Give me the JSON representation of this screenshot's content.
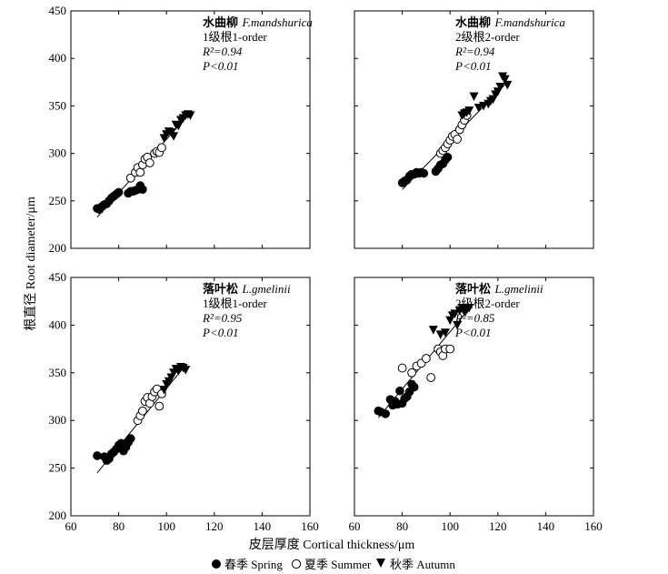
{
  "chart_data": {
    "type": "scatter",
    "xlabel": "皮层厚度 Cortical thickness/μm",
    "ylabel": "根直径  Root diameter/μm",
    "xlim": [
      60,
      160
    ],
    "xticks": [
      "60",
      "80",
      "100",
      "120",
      "140",
      "160"
    ],
    "ylim": [
      200,
      450
    ],
    "yticks": [
      "200",
      "250",
      "300",
      "350",
      "400",
      "450"
    ],
    "legend": {
      "placement": "bottom-center",
      "entries": [
        {
          "label": "春季 Spring",
          "marker": "filled-circle"
        },
        {
          "label": "夏季 Summer",
          "marker": "open-circle"
        },
        {
          "label": "秋季 Autumn",
          "marker": "filled-triangle-down"
        }
      ]
    },
    "panels": [
      {
        "species_cn": "水曲柳",
        "species_latin": "F.mandshurica",
        "order": "1级根1-order",
        "r2": "R²=0.94",
        "p": "P<0.01",
        "fit_line": [
          [
            71,
            233
          ],
          [
            110,
            343
          ]
        ],
        "series": [
          {
            "name": "春季 Spring",
            "points": [
              [
                71,
                242
              ],
              [
                72,
                241
              ],
              [
                73,
                244
              ],
              [
                74,
                246
              ],
              [
                75,
                247
              ],
              [
                76,
                250
              ],
              [
                77,
                253
              ],
              [
                78,
                255
              ],
              [
                79,
                257
              ],
              [
                80,
                259
              ],
              [
                84,
                258
              ],
              [
                85,
                260
              ],
              [
                86,
                260
              ],
              [
                87,
                261
              ],
              [
                88,
                262
              ],
              [
                89,
                266
              ],
              [
                90,
                262
              ]
            ]
          },
          {
            "name": "夏季 Summer",
            "points": [
              [
                85,
                274
              ],
              [
                87,
                280
              ],
              [
                88,
                285
              ],
              [
                89,
                280
              ],
              [
                90,
                288
              ],
              [
                91,
                294
              ],
              [
                92,
                296
              ],
              [
                93,
                290
              ],
              [
                95,
                300
              ],
              [
                96,
                302
              ],
              [
                97,
                301
              ],
              [
                98,
                306
              ]
            ]
          },
          {
            "name": "秋季 Autumn",
            "points": [
              [
                99,
                316
              ],
              [
                100,
                320
              ],
              [
                101,
                323
              ],
              [
                102,
                322
              ],
              [
                103,
                318
              ],
              [
                104,
                330
              ],
              [
                105,
                329
              ],
              [
                106,
                335
              ],
              [
                107,
                337
              ],
              [
                108,
                340
              ],
              [
                109,
                341
              ],
              [
                110,
                340
              ]
            ]
          }
        ]
      },
      {
        "species_cn": "水曲柳",
        "species_latin": "F.mandshurica",
        "order": "2级根2-order",
        "r2": "R²=0.94",
        "p": "P<0.01",
        "fit_line": [
          [
            80,
            262
          ],
          [
            124,
            375
          ]
        ],
        "series": [
          {
            "name": "春季 Spring",
            "points": [
              [
                80,
                269
              ],
              [
                81,
                271
              ],
              [
                82,
                272
              ],
              [
                83,
                276
              ],
              [
                84,
                278
              ],
              [
                85,
                278
              ],
              [
                86,
                280
              ],
              [
                87,
                279
              ],
              [
                88,
                280
              ],
              [
                89,
                279
              ],
              [
                94,
                281
              ],
              [
                95,
                284
              ],
              [
                96,
                288
              ],
              [
                97,
                289
              ],
              [
                98,
                293
              ],
              [
                99,
                296
              ]
            ]
          },
          {
            "name": "夏季 Summer",
            "points": [
              [
                96,
                300
              ],
              [
                97,
                303
              ],
              [
                98,
                306
              ],
              [
                99,
                310
              ],
              [
                100,
                314
              ],
              [
                101,
                318
              ],
              [
                102,
                320
              ],
              [
                103,
                315
              ],
              [
                104,
                325
              ],
              [
                105,
                330
              ],
              [
                106,
                335
              ],
              [
                107,
                340
              ]
            ]
          },
          {
            "name": "秋季 Autumn",
            "points": [
              [
                105,
                340
              ],
              [
                106,
                342
              ],
              [
                107,
                343
              ],
              [
                108,
                345
              ],
              [
                110,
                360
              ],
              [
                112,
                348
              ],
              [
                114,
                350
              ],
              [
                116,
                352
              ],
              [
                117,
                355
              ],
              [
                118,
                357
              ],
              [
                119,
                362
              ],
              [
                120,
                365
              ],
              [
                121,
                370
              ],
              [
                122,
                381
              ],
              [
                123,
                378
              ],
              [
                124,
                372
              ]
            ]
          }
        ]
      },
      {
        "species_cn": "落叶松",
        "species_latin": "L.gmelinii",
        "order": "1级根1-order",
        "r2": "R²=0.95",
        "p": "P<0.01",
        "fit_line": [
          [
            71,
            245
          ],
          [
            108,
            358
          ]
        ],
        "series": [
          {
            "name": "春季 Spring",
            "points": [
              [
                71,
                263
              ],
              [
                74,
                262
              ],
              [
                75,
                258
              ],
              [
                76,
                260
              ],
              [
                77,
                265
              ],
              [
                78,
                267
              ],
              [
                79,
                270
              ],
              [
                80,
                274
              ],
              [
                81,
                276
              ],
              [
                82,
                268
              ],
              [
                83,
                272
              ],
              [
                84,
                277
              ],
              [
                85,
                281
              ]
            ]
          },
          {
            "name": "夏季 Summer",
            "points": [
              [
                88,
                300
              ],
              [
                89,
                305
              ],
              [
                90,
                310
              ],
              [
                91,
                320
              ],
              [
                92,
                324
              ],
              [
                93,
                318
              ],
              [
                94,
                325
              ],
              [
                95,
                330
              ],
              [
                96,
                333
              ],
              [
                97,
                315
              ],
              [
                98,
                328
              ]
            ]
          },
          {
            "name": "秋季 Autumn",
            "points": [
              [
                99,
                332
              ],
              [
                100,
                338
              ],
              [
                101,
                341
              ],
              [
                102,
                345
              ],
              [
                103,
                350
              ],
              [
                104,
                354
              ],
              [
                105,
                352
              ],
              [
                106,
                356
              ],
              [
                107,
                355
              ],
              [
                108,
                353
              ]
            ]
          }
        ]
      },
      {
        "species_cn": "落叶松",
        "species_latin": "L.gmelinii",
        "order": "2级根2-order",
        "r2": "R²=0.85",
        "p": "P<0.01",
        "fit_line": [
          [
            70,
            303
          ],
          [
            109,
            420
          ]
        ],
        "series": [
          {
            "name": "春季 Spring",
            "points": [
              [
                70,
                310
              ],
              [
                71,
                309
              ],
              [
                73,
                307
              ],
              [
                75,
                322
              ],
              [
                76,
                316
              ],
              [
                77,
                320
              ],
              [
                78,
                317
              ],
              [
                79,
                331
              ],
              [
                80,
                318
              ],
              [
                81,
                323
              ],
              [
                82,
                325
              ],
              [
                83,
                330
              ],
              [
                84,
                338
              ],
              [
                85,
                335
              ]
            ]
          },
          {
            "name": "夏季 Summer",
            "points": [
              [
                80,
                355
              ],
              [
                84,
                350
              ],
              [
                86,
                357
              ],
              [
                88,
                360
              ],
              [
                90,
                365
              ],
              [
                92,
                345
              ],
              [
                95,
                375
              ],
              [
                96,
                372
              ],
              [
                97,
                368
              ],
              [
                98,
                375
              ],
              [
                100,
                375
              ]
            ]
          },
          {
            "name": "秋季 Autumn",
            "points": [
              [
                93,
                395
              ],
              [
                96,
                390
              ],
              [
                98,
                392
              ],
              [
                100,
                405
              ],
              [
                101,
                410
              ],
              [
                102,
                412
              ],
              [
                103,
                400
              ],
              [
                104,
                415
              ],
              [
                105,
                418
              ],
              [
                106,
                414
              ],
              [
                107,
                416
              ],
              [
                108,
                418
              ]
            ]
          }
        ]
      }
    ]
  }
}
